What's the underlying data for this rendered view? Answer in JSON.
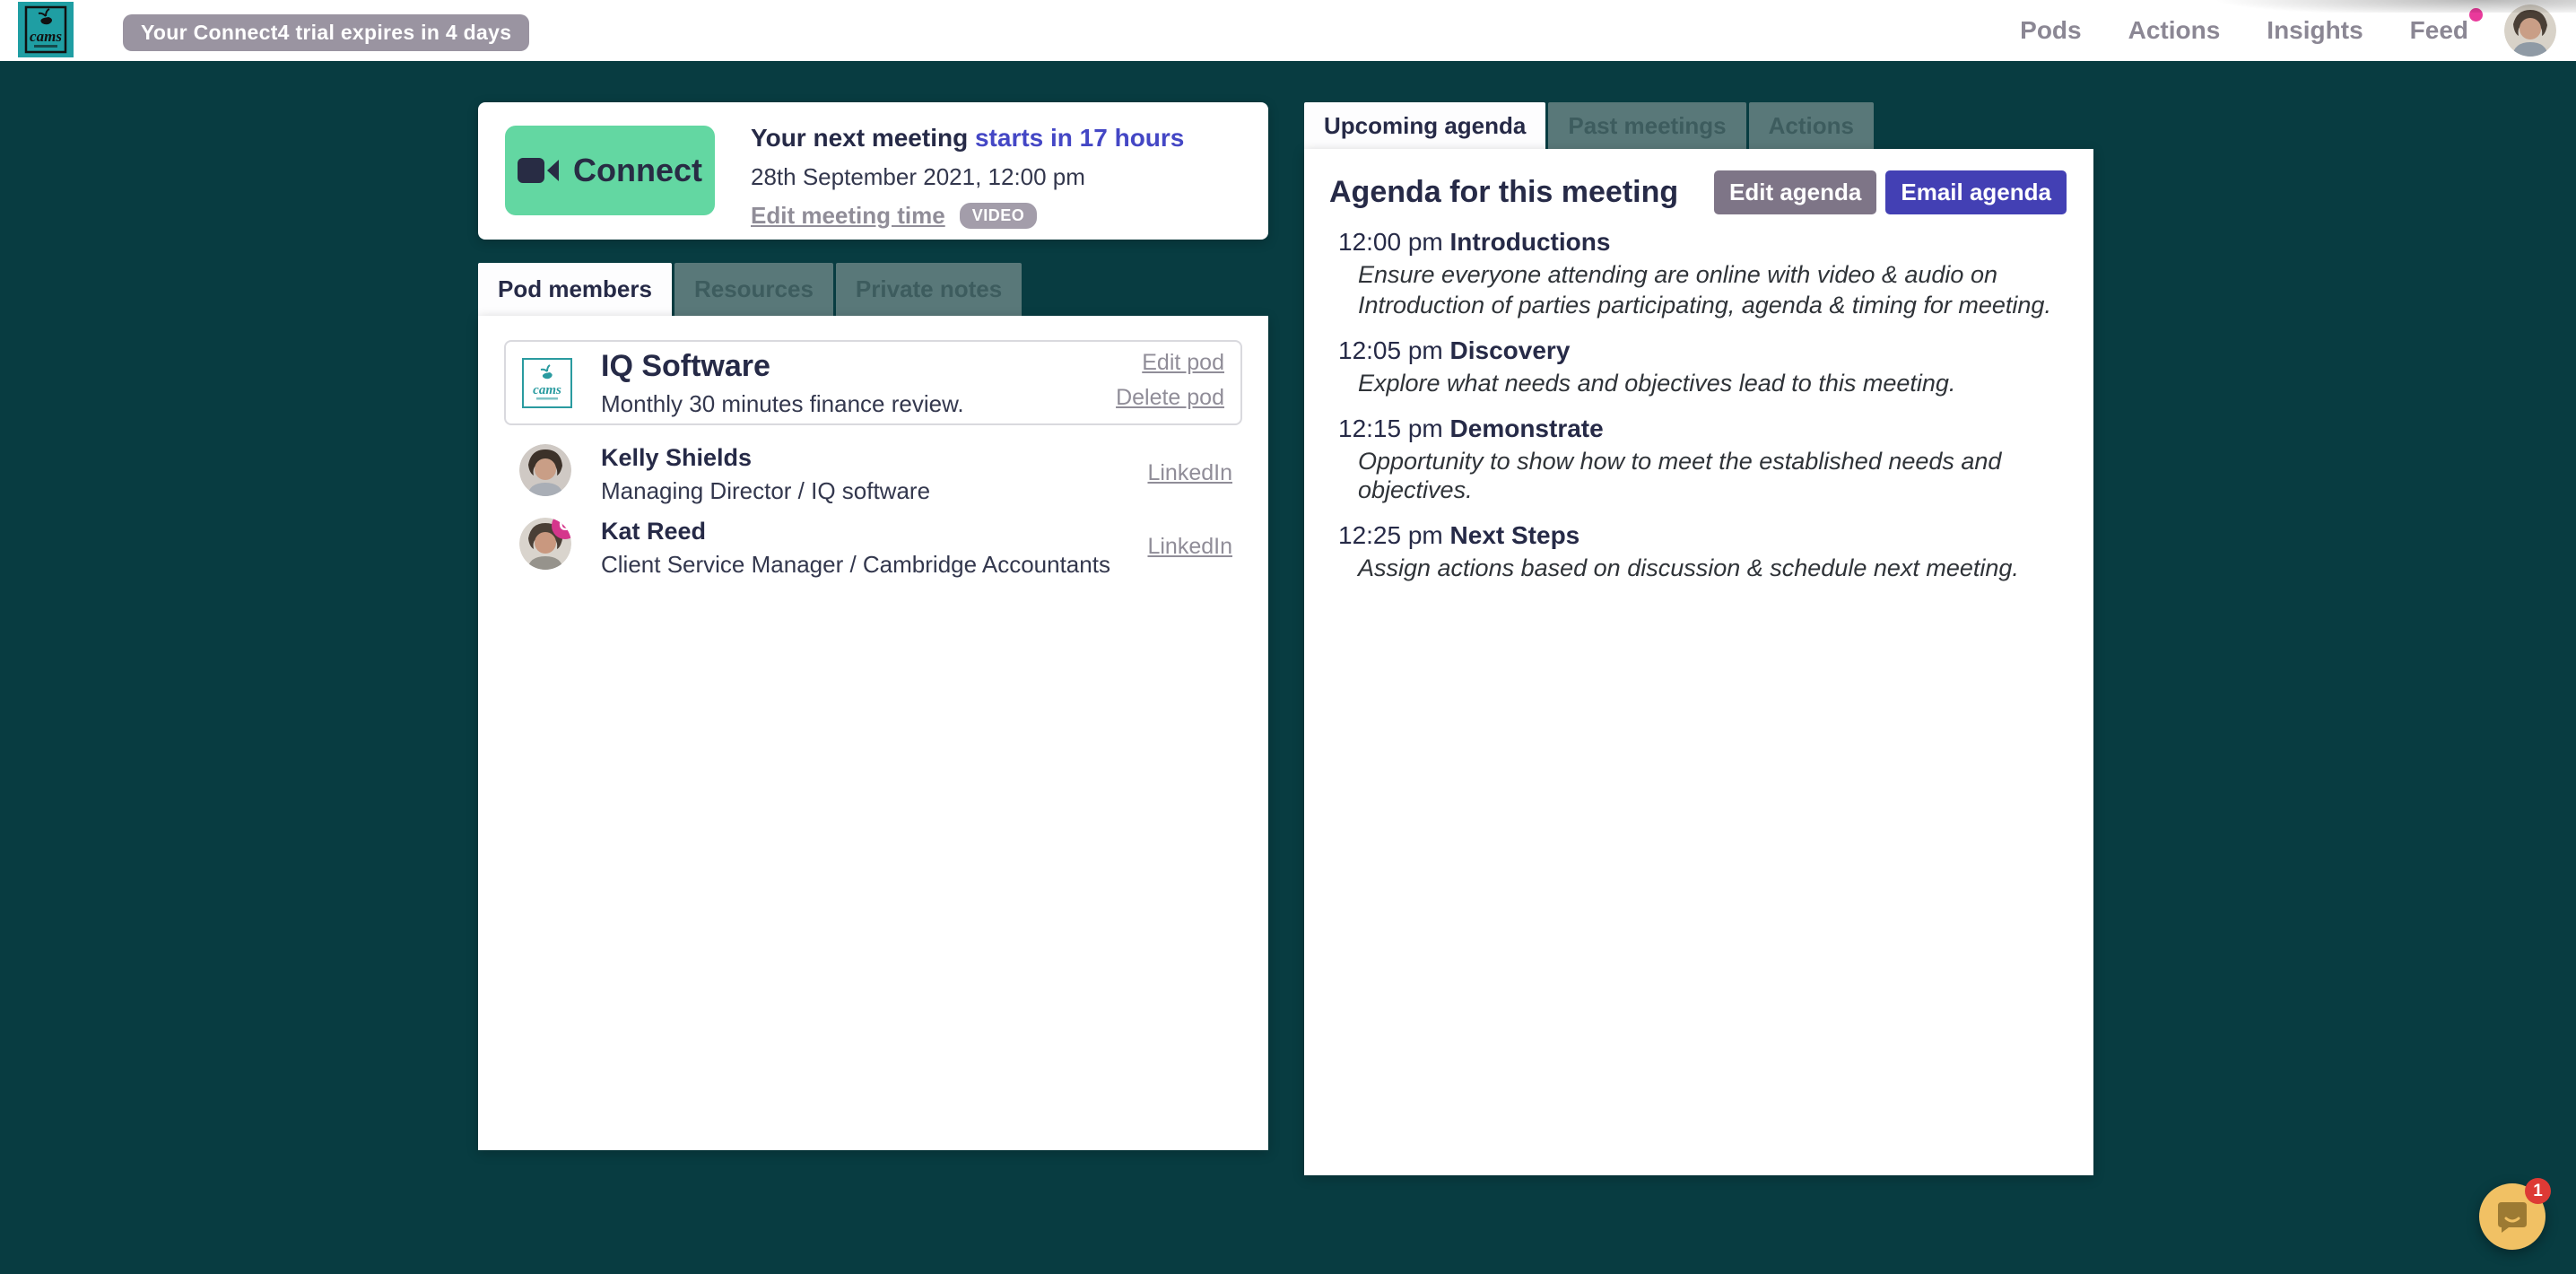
{
  "header": {
    "logo_text": "cams",
    "trial_notice": "Your Connect4 trial expires in 4 days",
    "nav_items": [
      {
        "label": "Pods",
        "dot": false
      },
      {
        "label": "Actions",
        "dot": false
      },
      {
        "label": "Insights",
        "dot": false
      },
      {
        "label": "Feed",
        "dot": true
      }
    ]
  },
  "next_meeting": {
    "connect_label": "Connect",
    "line_prefix": "Your next meeting ",
    "line_accent": "starts in 17 hours",
    "datetime": "28th September 2021, 12:00 pm",
    "edit_link": "Edit meeting time",
    "type_badge": "VIDEO"
  },
  "left_tabs": {
    "active": 0,
    "items": [
      "Pod members",
      "Resources",
      "Private notes"
    ]
  },
  "pod": {
    "name": "IQ Software",
    "description": "Monthly 30 minutes finance review.",
    "edit_link": "Edit pod",
    "delete_link": "Delete pod",
    "members": [
      {
        "name": "Kelly Shields",
        "role": "Managing Director / IQ software",
        "link": "LinkedIn",
        "badge": ""
      },
      {
        "name": "Kat Reed",
        "role": "Client Service Manager / Cambridge Accountants",
        "link": "LinkedIn",
        "badge": "C"
      }
    ]
  },
  "right_tabs": {
    "active": 0,
    "items": [
      "Upcoming agenda",
      "Past meetings",
      "Actions"
    ]
  },
  "agenda": {
    "title": "Agenda for this meeting",
    "edit_button": "Edit agenda",
    "email_button": "Email agenda",
    "items": [
      {
        "time": "12:00 pm",
        "title": "Introductions",
        "lines": [
          "Ensure everyone attending are online with video & audio on",
          "Introduction of parties participating, agenda & timing for meeting."
        ]
      },
      {
        "time": "12:05 pm",
        "title": "Discovery",
        "lines": [
          "Explore what needs and objectives lead to this meeting."
        ]
      },
      {
        "time": "12:15 pm",
        "title": "Demonstrate",
        "lines": [
          "Opportunity to show how to meet the established needs and objectives."
        ]
      },
      {
        "time": "12:25 pm",
        "title": "Next Steps",
        "lines": [
          "Assign actions based on discussion & schedule next meeting."
        ]
      }
    ]
  },
  "chat": {
    "unread_count": "1"
  },
  "colors": {
    "page_background": "#083c41",
    "connect_green": "#63d7a2",
    "accent_purple": "#4447c5",
    "email_button": "#4340b4",
    "edit_button": "#7e7587",
    "pink_badge": "#d5368c",
    "feed_dot": "#e93a9b",
    "intercom_yellow": "#f1c164",
    "badge_red": "#dd3a35",
    "text_navy": "#262a47"
  }
}
